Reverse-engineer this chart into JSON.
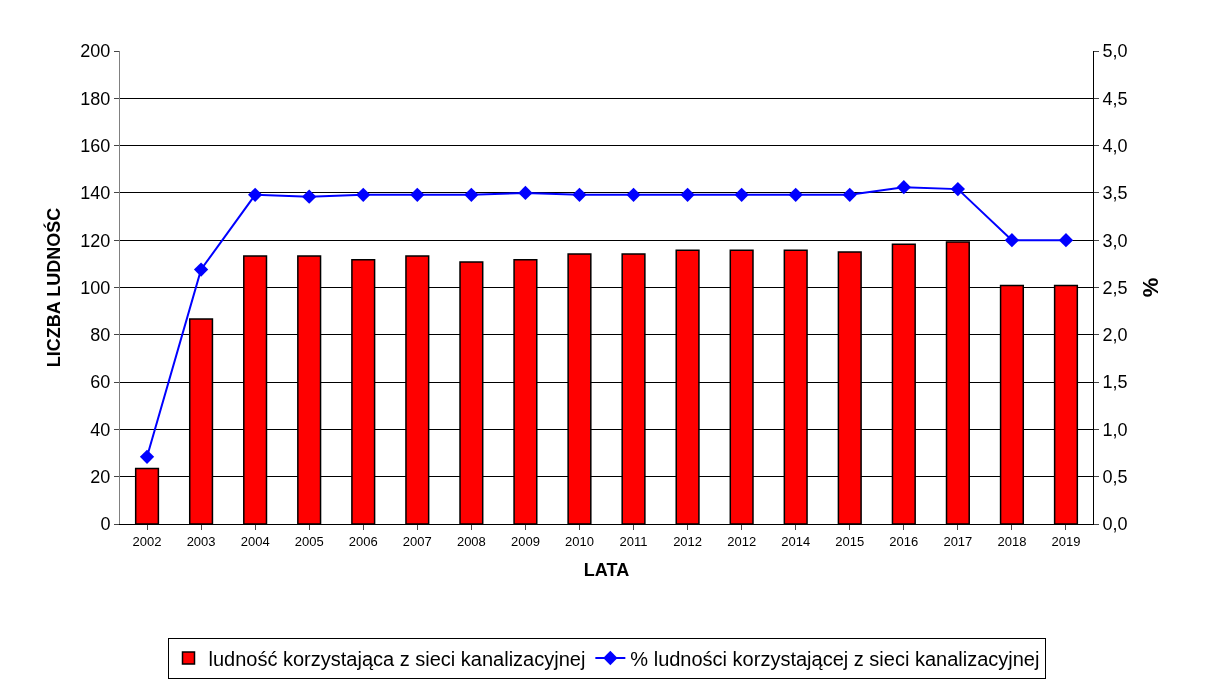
{
  "chart_data": {
    "type": "bar",
    "xlabel": "LATA",
    "ylabel": "LICZBA LUDNOŚC",
    "y2label": "%",
    "categories": [
      "2002",
      "2003",
      "2004",
      "2005",
      "2006",
      "2007",
      "2008",
      "2009",
      "2010",
      "2011",
      "2012",
      "2012",
      "2014",
      "2015",
      "2016",
      "2017",
      "2018",
      "2019"
    ],
    "series": [
      {
        "name": "ludność korzystająca z sieci kanalizacyjnej",
        "color": "#ff0000",
        "values": [
          23.5,
          86.7,
          113.3,
          113.3,
          111.7,
          113.3,
          110.8,
          111.7,
          114.2,
          114.2,
          115.8,
          115.8,
          115.8,
          115,
          118.3,
          119.2,
          100.8,
          100.8
        ]
      },
      {
        "name": "% ludności korzystającej z sieci kanalizacyjnej",
        "type": "line",
        "axis": "y2",
        "color": "#0000ff",
        "marker": "diamond",
        "line_style": "solid",
        "values": [
          0.71,
          2.69,
          3.48,
          3.46,
          3.48,
          3.48,
          3.48,
          3.5,
          3.48,
          3.48,
          3.48,
          3.48,
          3.48,
          3.48,
          3.56,
          3.54,
          3.0,
          3.0
        ]
      }
    ],
    "ylim": [
      0,
      200
    ],
    "yticks": [
      0,
      20,
      40,
      60,
      80,
      100,
      120,
      140,
      160,
      180,
      200
    ],
    "y2lim": [
      0,
      5
    ],
    "y2ticks": [
      {
        "value": 0,
        "label": "0,0"
      },
      {
        "value": 0.5,
        "label": "0,5"
      },
      {
        "value": 1,
        "label": "1,0"
      },
      {
        "value": 1.5,
        "label": "1,5"
      },
      {
        "value": 2,
        "label": "2,0"
      },
      {
        "value": 2.5,
        "label": "2,5"
      },
      {
        "value": 3,
        "label": "3,0"
      },
      {
        "value": 3.5,
        "label": "3,5"
      },
      {
        "value": 4,
        "label": "4,0"
      },
      {
        "value": 4.5,
        "label": "4,5"
      },
      {
        "value": 5,
        "label": "5,0"
      }
    ],
    "grid": "y",
    "legend": "bottom"
  }
}
